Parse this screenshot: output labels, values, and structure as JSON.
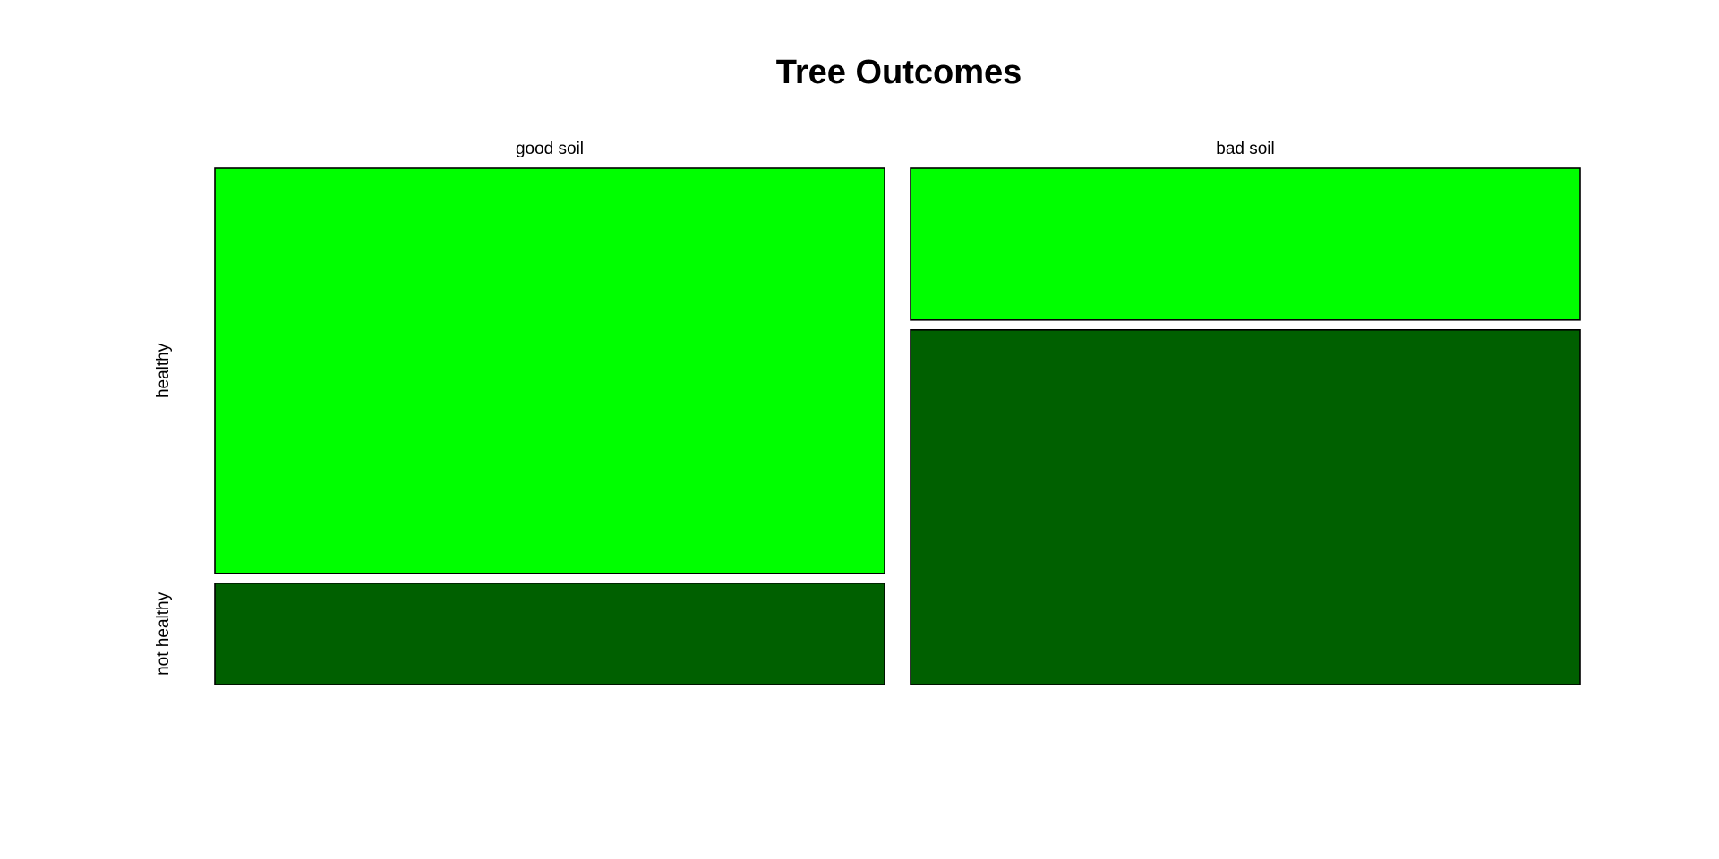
{
  "chart_data": {
    "type": "mosaic",
    "title": "Tree Outcomes",
    "columns": [
      "good soil",
      "bad soil"
    ],
    "rows": [
      "healthy",
      "not healthy"
    ],
    "column_proportions": [
      0.5,
      0.5
    ],
    "row_proportions_by_column": [
      [
        0.8,
        0.2
      ],
      [
        0.3,
        0.7
      ]
    ],
    "row_colors": [
      "#00ff00",
      "#006000"
    ],
    "legend": "none",
    "grid": false
  }
}
